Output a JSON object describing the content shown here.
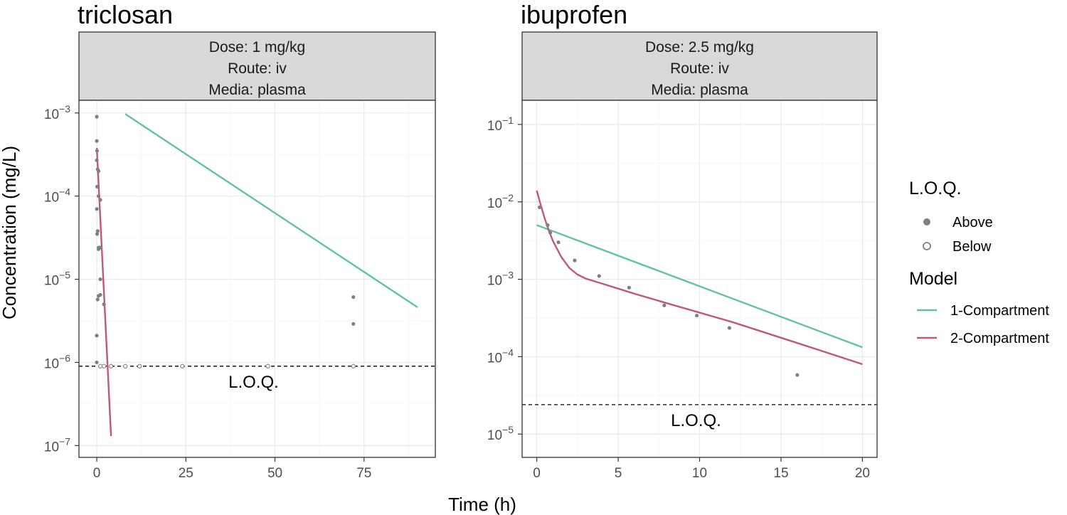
{
  "shared_axes": {
    "xlabel": "Time (h)",
    "ylabel": "Concentration (mg/L)"
  },
  "legend": {
    "loq_title": "L.O.Q.",
    "loq_items": [
      {
        "label": "Above",
        "shape": "filled-circle"
      },
      {
        "label": "Below",
        "shape": "open-circle"
      }
    ],
    "model_title": "Model",
    "model_items": [
      {
        "label": "1-Compartment",
        "color": "#5fc3a0"
      },
      {
        "label": "2-Compartment",
        "color": "#c0577c"
      }
    ]
  },
  "colors": {
    "one_compartment": "#5fc3a0",
    "two_compartment": "#c0577c",
    "points": "#808080",
    "strip": "#d9d9d9",
    "grid": "#ebebeb"
  },
  "chart_data": [
    {
      "type": "scatter",
      "title": "triclosan",
      "strip": [
        "Dose: 1 mg/kg",
        "Route: iv",
        "Media: plasma"
      ],
      "y_scale": "log10",
      "xlim": [
        -5,
        95
      ],
      "ylim": [
        7.2e-08,
        0.00142
      ],
      "x_ticks": [
        0,
        25,
        50,
        75
      ],
      "x_tick_labels": [
        "0",
        "25",
        "50",
        "75"
      ],
      "y_ticks": [
        1e-07,
        1e-06,
        1e-05,
        0.0001,
        0.001
      ],
      "y_tick_labels": [
        {
          "base": "10",
          "exp": "−7"
        },
        {
          "base": "10",
          "exp": "−6"
        },
        {
          "base": "10",
          "exp": "−5"
        },
        {
          "base": "10",
          "exp": "−4"
        },
        {
          "base": "10",
          "exp": "−3"
        }
      ],
      "loq_value": 9e-07,
      "loq_label": "L.O.Q.",
      "points_above": [
        {
          "x": 0.0,
          "y": 0.0009
        },
        {
          "x": 0.0,
          "y": 0.00046
        },
        {
          "x": 0.08,
          "y": 0.00035
        },
        {
          "x": 0.0,
          "y": 0.00027
        },
        {
          "x": 0.25,
          "y": 0.00021
        },
        {
          "x": 0.5,
          "y": 0.0002
        },
        {
          "x": 0.1,
          "y": 0.00013
        },
        {
          "x": 0.5,
          "y": 0.0001
        },
        {
          "x": 1.0,
          "y": 9e-05
        },
        {
          "x": 0.0,
          "y": 7e-05
        },
        {
          "x": 0.1,
          "y": 3.5e-05
        },
        {
          "x": 0.25,
          "y": 3.8e-05
        },
        {
          "x": 0.5,
          "y": 2.4e-05
        },
        {
          "x": 1.0,
          "y": 2.4e-05
        },
        {
          "x": 0.5,
          "y": 2.3e-05
        },
        {
          "x": 1.0,
          "y": 1e-05
        },
        {
          "x": 0.25,
          "y": 5.7e-06
        },
        {
          "x": 0.5,
          "y": 6.3e-06
        },
        {
          "x": 1.0,
          "y": 6.5e-06
        },
        {
          "x": 2.0,
          "y": 5e-06
        },
        {
          "x": 0.0,
          "y": 2.1e-06
        },
        {
          "x": 0.0,
          "y": 1e-06
        },
        {
          "x": 72.0,
          "y": 6.1e-06
        },
        {
          "x": 72.0,
          "y": 2.9e-06
        }
      ],
      "points_below": [
        {
          "x": 1.0,
          "y": 9e-07
        },
        {
          "x": 2.0,
          "y": 9e-07
        },
        {
          "x": 4.0,
          "y": 9e-07
        },
        {
          "x": 8.0,
          "y": 9e-07
        },
        {
          "x": 12.0,
          "y": 9e-07
        },
        {
          "x": 24.0,
          "y": 9e-07
        },
        {
          "x": 48.0,
          "y": 9e-07
        },
        {
          "x": 72.0,
          "y": 9e-07
        }
      ],
      "series": [
        {
          "name": "1-Compartment",
          "x": [
            8,
            90
          ],
          "y": [
            0.00097,
            4.6e-06
          ]
        },
        {
          "name": "2-Compartment",
          "x": [
            0,
            4
          ],
          "y": [
            0.00038,
            1.3e-07
          ]
        }
      ]
    },
    {
      "type": "scatter",
      "title": "ibuprofen",
      "strip": [
        "Dose: 2.5 mg/kg",
        "Route: iv",
        "Media: plasma"
      ],
      "y_scale": "log10",
      "xlim": [
        -0.9,
        20.9
      ],
      "ylim": [
        5e-06,
        0.205
      ],
      "x_ticks": [
        0,
        5,
        10,
        15,
        20
      ],
      "x_tick_labels": [
        "0",
        "5",
        "10",
        "15",
        "20"
      ],
      "y_ticks": [
        1e-05,
        0.0001,
        0.001,
        0.01,
        0.1
      ],
      "y_tick_labels": [
        {
          "base": "10",
          "exp": "−5"
        },
        {
          "base": "10",
          "exp": "−4"
        },
        {
          "base": "10",
          "exp": "−3"
        },
        {
          "base": "10",
          "exp": "−2"
        },
        {
          "base": "10",
          "exp": "−1"
        }
      ],
      "loq_value": 2.4e-05,
      "loq_label": "L.O.Q.",
      "points_above": [
        {
          "x": 0.17,
          "y": 0.0085
        },
        {
          "x": 0.67,
          "y": 0.005
        },
        {
          "x": 0.83,
          "y": 0.004
        },
        {
          "x": 1.33,
          "y": 0.003
        },
        {
          "x": 2.33,
          "y": 0.00175
        },
        {
          "x": 3.83,
          "y": 0.0011
        },
        {
          "x": 5.67,
          "y": 0.00078
        },
        {
          "x": 7.83,
          "y": 0.00046
        },
        {
          "x": 9.83,
          "y": 0.00034
        },
        {
          "x": 11.83,
          "y": 0.000235
        },
        {
          "x": 16.0,
          "y": 5.8e-05
        }
      ],
      "points_below": [],
      "series": [
        {
          "name": "1-Compartment",
          "x": [
            0,
            20
          ],
          "y": [
            0.005,
            0.000132
          ]
        },
        {
          "name": "2-Compartment",
          "x": [
            0.0,
            0.25,
            0.5,
            0.75,
            1.0,
            1.5,
            2.0,
            2.5,
            3.0,
            4.0,
            6.0,
            8.0,
            12.0,
            16.0,
            20.0
          ],
          "y": [
            0.014,
            0.009,
            0.006,
            0.0042,
            0.0031,
            0.00195,
            0.0014,
            0.00115,
            0.00102,
            0.00088,
            0.00065,
            0.00049,
            0.00028,
            0.00015,
            8e-05
          ]
        }
      ]
    }
  ]
}
